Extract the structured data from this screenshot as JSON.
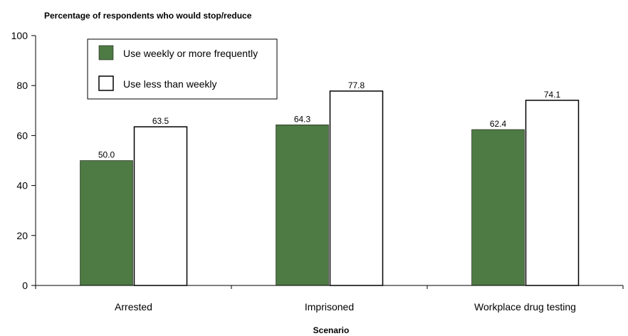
{
  "chart_data": {
    "type": "bar",
    "ylabel": "Percentage of respondents who would stop/reduce",
    "xlabel": "Scenario",
    "categories": [
      "Arrested",
      "Imprisoned",
      "Workplace drug testing"
    ],
    "series": [
      {
        "name": "Use weekly or more frequently",
        "values": [
          50.0,
          64.3,
          62.4
        ],
        "color": "#4e7a43"
      },
      {
        "name": "Use less than weekly",
        "values": [
          63.5,
          77.8,
          74.1
        ],
        "color": "#ffffff"
      }
    ],
    "value_labels": [
      [
        "50.0",
        "64.3",
        "62.4"
      ],
      [
        "63.5",
        "77.8",
        "74.1"
      ]
    ],
    "ylim": [
      0,
      100
    ],
    "yticks": [
      0,
      20,
      40,
      60,
      80,
      100
    ],
    "ytick_labels": [
      "0",
      "20",
      "40",
      "60",
      "80",
      "100"
    ],
    "grid": false,
    "legend_position": "top-left"
  }
}
